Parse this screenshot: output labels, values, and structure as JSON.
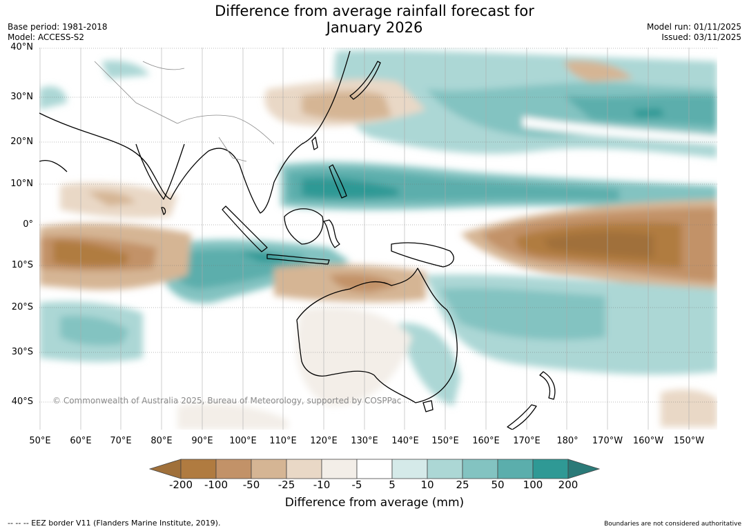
{
  "title_line1": "Difference from average rainfall forecast for",
  "title_line2": "January 2026",
  "base_period": "Base period: 1981-2018",
  "model": "Model: ACCESS-S2",
  "model_run": "Model run: 01/11/2025",
  "issued": "Issued: 03/11/2025",
  "lat_labels": [
    "40°N",
    "30°N",
    "20°N",
    "10°N",
    "0°",
    "10°S",
    "20°S",
    "30°S",
    "40°S"
  ],
  "lon_labels": [
    "50°E",
    "60°E",
    "70°E",
    "80°E",
    "90°E",
    "100°E",
    "110°E",
    "120°E",
    "130°E",
    "140°E",
    "150°E",
    "160°E",
    "170°E",
    "180°",
    "170°W",
    "160°W",
    "150°W"
  ],
  "copyright": "© Commonwealth of Australia 2025, Bureau of Meteorology, supported by COSPPac",
  "legend": {
    "ticks": [
      "-200",
      "-100",
      "-50",
      "-25",
      "-10",
      "-5",
      "5",
      "10",
      "25",
      "50",
      "100",
      "200"
    ],
    "colors": [
      "#a0703a",
      "#b07b40",
      "#c29268",
      "#d5b594",
      "#e9d8c6",
      "#f3eee8",
      "#ffffff",
      "#d5eae9",
      "#acd7d5",
      "#83c3c1",
      "#5baeac",
      "#2f9995",
      "#2a7a78"
    ],
    "title": "Difference from average (mm)"
  },
  "footer_left": "--  --  -- EEZ border V11 (Flanders Marine Institute, 2019).",
  "footer_right": "Boundaries are not considered authoritative"
}
